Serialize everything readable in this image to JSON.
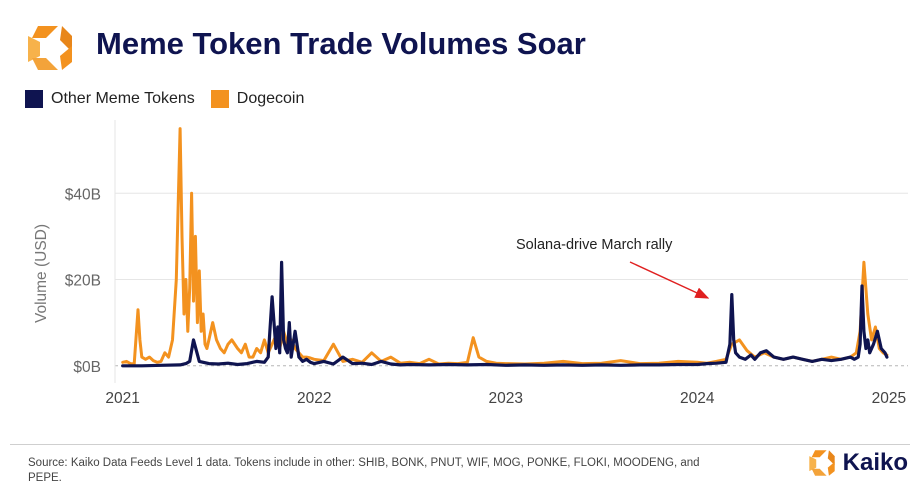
{
  "header": {
    "title": "Meme Token Trade Volumes Soar",
    "logo_icon": "kaiko-logo-icon"
  },
  "colors": {
    "navy": "#0f1450",
    "orange": "#f3921f",
    "grid": "#e6e6e6",
    "axis_text": "#666666",
    "annotation_arrow": "#e02020"
  },
  "chart_data": {
    "type": "line",
    "title": "Meme Token Trade Volumes Soar",
    "xlabel": "",
    "ylabel": "Volume (USD)",
    "ylim": [
      -4,
      57
    ],
    "xlim": [
      2020.96,
      2025.1
    ],
    "yticks": [
      0,
      20,
      40
    ],
    "ytick_labels": [
      "$0B",
      "$20B",
      "$40B"
    ],
    "xticks": [
      2021,
      2022,
      2023,
      2024,
      2025
    ],
    "xtick_labels": [
      "2021",
      "2022",
      "2023",
      "2024",
      "2025"
    ],
    "grid": true,
    "legend_position": "top-left",
    "annotation": {
      "text": "Solana-drive March rally",
      "point": [
        2024.18,
        16.5
      ]
    },
    "series": [
      {
        "name": "Dogecoin",
        "color": "#f3921f",
        "x": [
          2021.0,
          2021.02,
          2021.04,
          2021.06,
          2021.08,
          2021.09,
          2021.1,
          2021.12,
          2021.14,
          2021.16,
          2021.18,
          2021.2,
          2021.22,
          2021.24,
          2021.26,
          2021.28,
          2021.3,
          2021.31,
          2021.32,
          2021.33,
          2021.34,
          2021.35,
          2021.36,
          2021.37,
          2021.38,
          2021.39,
          2021.4,
          2021.41,
          2021.42,
          2021.43,
          2021.44,
          2021.45,
          2021.47,
          2021.49,
          2021.51,
          2021.53,
          2021.55,
          2021.57,
          2021.6,
          2021.62,
          2021.64,
          2021.66,
          2021.68,
          2021.7,
          2021.72,
          2021.74,
          2021.76,
          2021.78,
          2021.8,
          2021.82,
          2021.84,
          2021.86,
          2021.88,
          2021.9,
          2021.92,
          2021.94,
          2021.96,
          2021.98,
          2022.0,
          2022.05,
          2022.1,
          2022.15,
          2022.2,
          2022.25,
          2022.3,
          2022.35,
          2022.4,
          2022.45,
          2022.5,
          2022.55,
          2022.6,
          2022.65,
          2022.7,
          2022.75,
          2022.8,
          2022.83,
          2022.86,
          2022.9,
          2022.95,
          2023.0,
          2023.1,
          2023.2,
          2023.3,
          2023.4,
          2023.5,
          2023.6,
          2023.7,
          2023.8,
          2023.9,
          2024.0,
          2024.05,
          2024.1,
          2024.15,
          2024.18,
          2024.22,
          2024.26,
          2024.3,
          2024.35,
          2024.4,
          2024.45,
          2024.5,
          2024.55,
          2024.6,
          2024.65,
          2024.7,
          2024.75,
          2024.8,
          2024.83,
          2024.85,
          2024.87,
          2024.89,
          2024.91,
          2024.93,
          2024.95,
          2024.97,
          2024.99
        ],
        "values": [
          0.8,
          1.0,
          0.5,
          0.4,
          13.0,
          6.0,
          2.0,
          1.5,
          2.0,
          1.2,
          0.8,
          1.0,
          3.0,
          2.0,
          6.0,
          20.0,
          55.0,
          30.0,
          12.0,
          20.0,
          8.0,
          18.0,
          40.0,
          15.0,
          30.0,
          10.0,
          22.0,
          8.0,
          12.0,
          5.0,
          4.0,
          6.0,
          10.0,
          6.0,
          4.0,
          3.0,
          5.0,
          6.0,
          4.0,
          3.0,
          5.0,
          2.0,
          2.0,
          4.0,
          3.0,
          6.0,
          3.0,
          5.0,
          7.0,
          4.0,
          8.0,
          5.0,
          6.0,
          4.0,
          3.0,
          2.0,
          2.0,
          1.8,
          1.5,
          1.2,
          5.0,
          1.0,
          1.5,
          0.8,
          3.0,
          1.0,
          2.0,
          0.6,
          0.8,
          0.5,
          1.5,
          0.4,
          0.6,
          0.5,
          0.8,
          6.5,
          2.0,
          1.0,
          0.6,
          0.5,
          0.4,
          0.6,
          1.0,
          0.5,
          0.6,
          1.2,
          0.5,
          0.6,
          1.0,
          0.8,
          0.6,
          1.0,
          1.5,
          5.0,
          6.0,
          3.5,
          2.0,
          3.0,
          2.0,
          1.5,
          2.0,
          1.5,
          1.0,
          1.5,
          2.0,
          1.5,
          2.0,
          3.0,
          8.0,
          24.0,
          12.0,
          6.0,
          9.0,
          4.0,
          3.0,
          2.5
        ]
      },
      {
        "name": "Other Meme Tokens",
        "color": "#0f1450",
        "x": [
          2021.0,
          2021.1,
          2021.2,
          2021.3,
          2021.33,
          2021.35,
          2021.37,
          2021.4,
          2021.45,
          2021.5,
          2021.55,
          2021.6,
          2021.65,
          2021.7,
          2021.74,
          2021.76,
          2021.78,
          2021.8,
          2021.81,
          2021.82,
          2021.83,
          2021.84,
          2021.85,
          2021.86,
          2021.87,
          2021.88,
          2021.9,
          2021.92,
          2021.94,
          2021.96,
          2021.98,
          2022.0,
          2022.05,
          2022.1,
          2022.15,
          2022.2,
          2022.25,
          2022.3,
          2022.35,
          2022.4,
          2022.45,
          2022.5,
          2022.6,
          2022.7,
          2022.8,
          2022.9,
          2023.0,
          2023.1,
          2023.2,
          2023.3,
          2023.4,
          2023.5,
          2023.6,
          2023.7,
          2023.8,
          2023.9,
          2024.0,
          2024.05,
          2024.1,
          2024.15,
          2024.17,
          2024.18,
          2024.19,
          2024.2,
          2024.22,
          2024.25,
          2024.28,
          2024.3,
          2024.33,
          2024.36,
          2024.4,
          2024.45,
          2024.5,
          2024.55,
          2024.6,
          2024.65,
          2024.7,
          2024.75,
          2024.8,
          2024.82,
          2024.84,
          2024.85,
          2024.86,
          2024.87,
          2024.88,
          2024.89,
          2024.9,
          2024.92,
          2024.94,
          2024.96,
          2024.98,
          2024.99
        ],
        "values": [
          0.0,
          0.0,
          0.1,
          0.2,
          0.5,
          1.0,
          6.0,
          1.0,
          0.5,
          0.4,
          0.6,
          0.3,
          0.5,
          1.0,
          0.8,
          2.0,
          16.0,
          4.0,
          9.0,
          3.0,
          24.0,
          6.0,
          4.0,
          3.0,
          10.0,
          2.0,
          8.0,
          2.0,
          1.0,
          1.5,
          0.8,
          0.5,
          1.0,
          0.4,
          2.0,
          0.5,
          0.6,
          0.3,
          1.0,
          0.4,
          0.2,
          0.3,
          0.2,
          0.3,
          0.2,
          0.3,
          0.1,
          0.2,
          0.1,
          0.2,
          0.1,
          0.2,
          0.1,
          0.2,
          0.2,
          0.3,
          0.3,
          0.5,
          0.6,
          0.8,
          5.0,
          16.5,
          6.0,
          3.0,
          2.0,
          1.5,
          2.5,
          1.5,
          3.0,
          3.5,
          2.0,
          1.5,
          2.0,
          1.5,
          1.0,
          1.5,
          1.2,
          1.5,
          2.0,
          1.5,
          2.0,
          5.0,
          18.5,
          8.0,
          4.0,
          6.0,
          3.0,
          5.0,
          8.0,
          4.0,
          3.0,
          2.0
        ]
      }
    ]
  },
  "footer": {
    "source_text": "Source: Kaiko Data Feeds Level 1 data. Tokens include in other: SHIB, BONK, PNUT, WIF, MOG, PONKE, FLOKI, MOODENG, and PEPE.",
    "brand_name": "Kaiko",
    "brand_icon": "kaiko-logo-icon"
  }
}
